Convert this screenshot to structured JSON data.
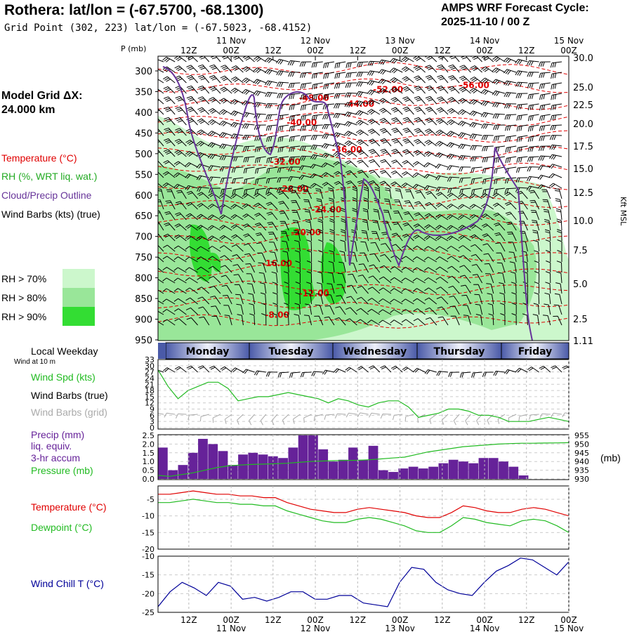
{
  "header": {
    "title": "Rothera:  lat/lon = (-67.5700, -68.1300)",
    "grid_point": "Grid Point (302, 223) lat/lon = (-67.5023, -68.4152)",
    "forecast_line1": "AMPS WRF Forecast Cycle:",
    "forecast_line2": "2025-11-10 / 00  Z",
    "grid_label": "Model Grid ΔX:",
    "grid_value": " 24.000 km"
  },
  "legend": {
    "temperature": "Temperature (°C)",
    "rh": "RH (%, WRT liq. wat.)",
    "cloud": "Cloud/Precip Outline",
    "barbs": "Wind Barbs (kts) (true)",
    "rh70": "RH > 70%",
    "rh80": "RH > 80%",
    "rh90": "RH > 90%",
    "local_weekday": "Local Weekday",
    "wind_10m": "Wind at 10 m",
    "wind_spd": "Wind Spd (kts)",
    "barbs_true": "Wind Barbs (true)",
    "barbs_grid": "Wind Barbs (grid)",
    "precip1": "Precip (mm)",
    "precip2": "liq. equiv.",
    "precip3": "3-hr accum",
    "pressure": "Pressure (mb)",
    "temp2": "Temperature (°C)",
    "dewpoint": "Dewpoint (°C)",
    "windchill": "Wind Chill T (°C)",
    "mb_unit": "(mb)"
  },
  "colors": {
    "temp": "#e00000",
    "rh70": "#ccf7cc",
    "rh80": "#99e699",
    "rh90": "#33dd33",
    "cloud": "#663399",
    "wind": "#22bb22",
    "grid_barb": "#aaaaaa",
    "precip": "#662299",
    "pressure": "#22bb22",
    "dew": "#22bb22",
    "chill": "#000099",
    "weekday_dark": "#4a5aa8",
    "weekday_light": "#e8eaf6"
  },
  "time_axis": {
    "top_hours": [
      "12Z",
      "00Z",
      "12Z",
      "00Z",
      "12Z",
      "00Z",
      "12Z",
      "00Z",
      "12Z",
      "00Z"
    ],
    "top_dates": [
      "11 Nov",
      "12 Nov",
      "13 Nov",
      "14 Nov",
      "15 Nov"
    ],
    "bottom_hours": [
      "12Z",
      "00Z",
      "12Z",
      "00Z",
      "12Z",
      "00Z",
      "12Z",
      "00Z",
      "12Z",
      "00Z"
    ],
    "bottom_dates": [
      "11 Nov",
      "12 Nov",
      "13 Nov",
      "14 Nov",
      "15 Nov"
    ],
    "weekdays": [
      "Monday",
      "Tuesday",
      "Wednesday",
      "Thursday",
      "Friday"
    ]
  },
  "chart_data": [
    {
      "type": "contour",
      "pressure_axis_label": "P (mb)",
      "pressure_ticks": [
        "300",
        "350",
        "400",
        "450",
        "500",
        "550",
        "600",
        "650",
        "700",
        "750",
        "800",
        "850",
        "900",
        "950"
      ],
      "height_axis_label": "Kft MSL",
      "height_ticks": [
        "30.0",
        "25.0",
        "22.5",
        "20.0",
        "17.5",
        "15.0",
        "12.5",
        "10.0",
        "7.5",
        "5.0",
        "2.5",
        "1.11"
      ],
      "isotherm_labels": [
        {
          "text": "-52.00",
          "t": 0.56,
          "p": 345
        },
        {
          "text": "-56.00",
          "t": 0.77,
          "p": 335
        },
        {
          "text": "-48.00",
          "t": 0.38,
          "p": 365
        },
        {
          "text": "-44.00",
          "t": 0.49,
          "p": 380
        },
        {
          "text": "-40.00",
          "t": 0.35,
          "p": 425
        },
        {
          "text": "-36.00",
          "t": 0.46,
          "p": 490
        },
        {
          "text": "-32.00",
          "t": 0.31,
          "p": 520
        },
        {
          "text": "-28.00",
          "t": 0.33,
          "p": 585
        },
        {
          "text": "-24.00",
          "t": 0.41,
          "p": 635
        },
        {
          "text": "-20.00",
          "t": 0.36,
          "p": 690
        },
        {
          "text": "-16.00",
          "t": 0.29,
          "p": 765
        },
        {
          "text": "-12.00",
          "t": 0.38,
          "p": 838
        },
        {
          "text": "-8.00",
          "t": 0.29,
          "p": 890
        }
      ]
    },
    {
      "type": "line",
      "name": "Wind Spd (kts)",
      "y_ticks": [
        "33",
        "30",
        "27",
        "24",
        "21",
        "18",
        "15",
        "12",
        "9",
        "6",
        "3",
        "0"
      ],
      "ylim": [
        0,
        33
      ],
      "values": [
        28,
        20,
        14,
        18,
        20,
        22,
        22,
        19,
        13,
        14,
        15,
        15,
        16,
        17,
        16,
        15,
        14,
        12,
        14,
        13,
        11,
        10,
        12,
        13,
        13,
        10,
        5,
        6,
        7,
        9,
        9,
        8,
        6,
        6,
        5,
        3,
        3,
        3,
        4,
        5,
        4,
        3
      ]
    },
    {
      "type": "bar",
      "name": "Precip (mm)",
      "y_ticks": [
        "2.5",
        "2.0",
        "1.5",
        "1.0",
        "0.5",
        "0.0"
      ],
      "ylim": [
        0,
        2.5
      ],
      "values": [
        1.8,
        0.5,
        0.8,
        1.5,
        2.3,
        2.0,
        1.6,
        0.8,
        1.4,
        1.5,
        1.4,
        1.3,
        1.2,
        1.8,
        2.5,
        2.5,
        1.7,
        1.0,
        1.1,
        1.8,
        1.1,
        1.9,
        0.5,
        0.4,
        0.6,
        0.7,
        0.6,
        0.7,
        0.9,
        1.1,
        1.0,
        0.9,
        1.2,
        1.2,
        1.0,
        0.7,
        0.2
      ]
    },
    {
      "type": "line",
      "name": "Pressure (mb)",
      "y_ticks": [
        "955",
        "950",
        "945",
        "940",
        "935",
        "930"
      ],
      "ylim": [
        930,
        955
      ],
      "values": [
        932,
        931.5,
        932.5,
        933.5,
        935,
        936.5,
        937.5,
        938,
        938.3,
        938.5,
        938.7,
        939,
        939.5,
        940,
        940.3,
        940.5,
        940.6,
        940.7,
        941,
        941.5,
        942,
        942.5,
        944,
        945.5,
        946.5,
        947.5,
        948.5,
        949,
        949.5,
        950,
        950.3,
        950.5,
        950.5,
        950.6,
        950.7,
        950.8
      ]
    },
    {
      "type": "line",
      "name": "Temperature (°C)",
      "y_ticks": [
        "-5",
        "-10",
        "-15",
        "-20"
      ],
      "ylim": [
        -20,
        -1
      ],
      "series": [
        {
          "name": "Temperature (°C)",
          "values": [
            -3.5,
            -3.5,
            -3,
            -2.5,
            -3,
            -3.5,
            -3.5,
            -4,
            -4,
            -4.5,
            -4.5,
            -6,
            -7,
            -8,
            -8.5,
            -9,
            -9,
            -8,
            -7.5,
            -8,
            -8.5,
            -9,
            -10,
            -10.5,
            -10.5,
            -9,
            -7,
            -7.5,
            -8.5,
            -9,
            -9,
            -8,
            -7.5,
            -8,
            -9,
            -10
          ]
        },
        {
          "name": "Dewpoint (°C)",
          "values": [
            -6,
            -6,
            -5.5,
            -5,
            -5.5,
            -6,
            -6,
            -6.5,
            -6.5,
            -7,
            -7,
            -8.5,
            -9.5,
            -10.5,
            -11.5,
            -12,
            -12,
            -11,
            -10.5,
            -11,
            -12,
            -13,
            -14.5,
            -15,
            -15,
            -13,
            -10.5,
            -11,
            -12,
            -12.5,
            -13,
            -11.5,
            -11,
            -11.5,
            -13,
            -15
          ]
        }
      ]
    },
    {
      "type": "line",
      "name": "Wind Chill T (°C)",
      "y_ticks": [
        "-10",
        "-15",
        "-20",
        "-25"
      ],
      "ylim": [
        -25,
        -10
      ],
      "values": [
        -23.5,
        -19.5,
        -17,
        -18.5,
        -20.5,
        -17,
        -18,
        -21.5,
        -21,
        -22,
        -21,
        -19.5,
        -19.5,
        -21.5,
        -21.5,
        -20.5,
        -20.5,
        -22.5,
        -23,
        -23.5,
        -17,
        -13,
        -13.5,
        -17,
        -19,
        -20,
        -20.5,
        -17,
        -14,
        -12.5,
        -10.5,
        -11,
        -13,
        -15,
        -11.5
      ]
    }
  ]
}
